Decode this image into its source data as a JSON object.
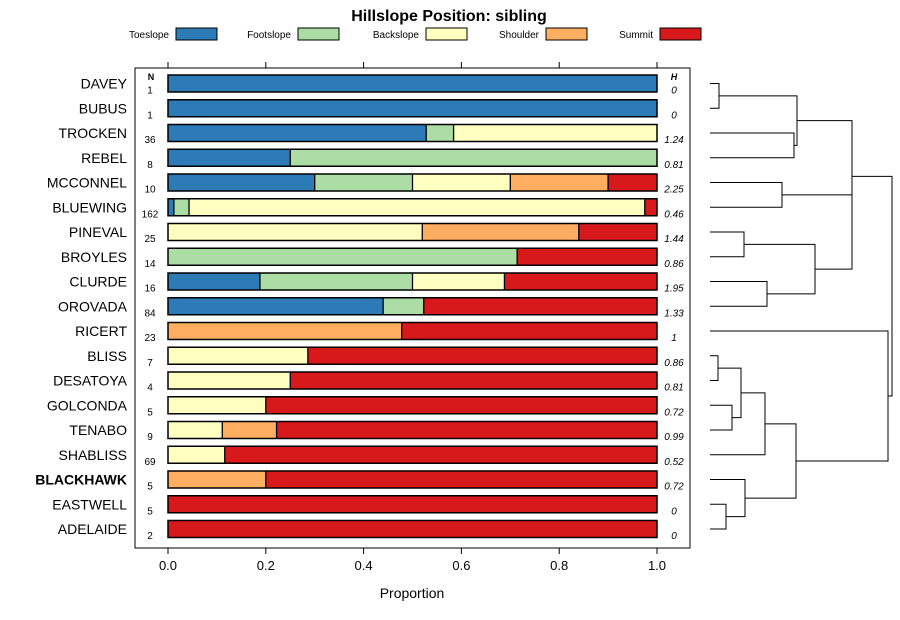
{
  "chart_data": {
    "type": "bar",
    "stacked": true,
    "orientation": "horizontal",
    "title": "Hillslope Position: sibling",
    "xlabel": "Proportion",
    "xlim": [
      0,
      1
    ],
    "xticks": [
      0,
      0.2,
      0.4,
      0.6,
      0.8,
      1
    ],
    "xtick_labels": [
      "0.0",
      "0.2",
      "0.4",
      "0.6",
      "0.8",
      "1.0"
    ],
    "n_header": "N",
    "h_header": "H",
    "highlight": "BLACKHAWK",
    "legend": [
      {
        "name": "Toeslope",
        "color": "#2C7BB6"
      },
      {
        "name": "Footslope",
        "color": "#ABDDA4"
      },
      {
        "name": "Backslope",
        "color": "#FFFFBF"
      },
      {
        "name": "Shoulder",
        "color": "#FDAE61"
      },
      {
        "name": "Summit",
        "color": "#D7191C"
      }
    ],
    "categories": [
      "DAVEY",
      "BUBUS",
      "TROCKEN",
      "REBEL",
      "MCCONNEL",
      "BLUEWING",
      "PINEVAL",
      "BROYLES",
      "CLURDE",
      "OROVADA",
      "RICERT",
      "BLISS",
      "DESATOYA",
      "GOLCONDA",
      "TENABO",
      "SHABLISS",
      "BLACKHAWK",
      "EASTWELL",
      "ADELAIDE"
    ],
    "n": [
      "1",
      "1",
      "36",
      "8",
      "10",
      "162",
      "25",
      "14",
      "16",
      "84",
      "23",
      "7",
      "4",
      "5",
      "9",
      "69",
      "5",
      "5",
      "2"
    ],
    "h": [
      "0",
      "0",
      "1.24",
      "0.81",
      "2.25",
      "0.46",
      "1.44",
      "0.86",
      "1.95",
      "1.33",
      "1",
      "0.86",
      "0.81",
      "0.72",
      "0.99",
      "0.52",
      "0.72",
      "0",
      "0"
    ],
    "series": [
      {
        "name": "Toeslope",
        "values": [
          1.0,
          1.0,
          0.528,
          0.25,
          0.3,
          0.012,
          0,
          0,
          0.188,
          0.44,
          0,
          0,
          0,
          0,
          0,
          0,
          0,
          0,
          0
        ]
      },
      {
        "name": "Footslope",
        "values": [
          0,
          0,
          0.056,
          0.75,
          0.2,
          0.031,
          0,
          0.714,
          0.312,
          0.083,
          0,
          0,
          0,
          0,
          0,
          0,
          0,
          0,
          0
        ]
      },
      {
        "name": "Backslope",
        "values": [
          0,
          0,
          0.416,
          0,
          0.2,
          0.932,
          0.52,
          0,
          0.188,
          0,
          0,
          0.286,
          0.25,
          0.2,
          0.111,
          0.116,
          0,
          0,
          0
        ]
      },
      {
        "name": "Shoulder",
        "values": [
          0,
          0,
          0,
          0,
          0.2,
          0,
          0.32,
          0,
          0,
          0,
          0.478,
          0,
          0,
          0,
          0.111,
          0,
          0.2,
          0,
          0
        ]
      },
      {
        "name": "Summit",
        "values": [
          0,
          0,
          0,
          0,
          0.1,
          0.025,
          0.16,
          0.286,
          0.312,
          0.477,
          0.522,
          0.714,
          0.75,
          0.8,
          0.778,
          0.884,
          0.8,
          1.0,
          1.0
        ]
      }
    ],
    "dendrogram": "hierarchical clustering of series"
  }
}
